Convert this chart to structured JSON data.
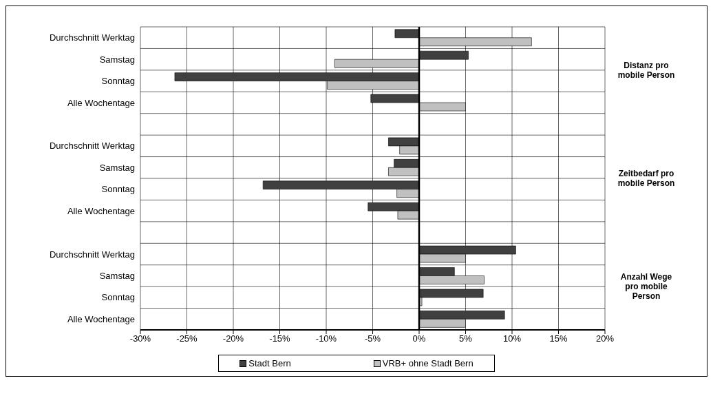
{
  "chart_data": {
    "type": "bar",
    "orientation": "horizontal",
    "categories": [
      "Durchschnitt Werktag",
      "Samstag",
      "Sonntag",
      "Alle Wochentage",
      null,
      "Durchschnitt Werktag",
      "Samstag",
      "Sonntag",
      "Alle Wochentage",
      null,
      "Durchschnitt Werktag",
      "Samstag",
      "Sonntag",
      "Alle Wochentage"
    ],
    "series": [
      {
        "name": "Stadt Bern",
        "color": "#404040",
        "values": [
          -2.6,
          5.3,
          -26.3,
          -5.2,
          null,
          -3.3,
          -2.7,
          -16.8,
          -5.5,
          null,
          10.4,
          3.8,
          6.9,
          9.2
        ]
      },
      {
        "name": "VRB+ ohne Stadt Bern",
        "color": "#c0c0c0",
        "values": [
          12.1,
          -9.1,
          -9.9,
          5.0,
          null,
          -2.1,
          -3.3,
          -2.4,
          -2.3,
          null,
          5.0,
          7.0,
          0.3,
          5.0
        ]
      }
    ],
    "xlim": [
      -30,
      20
    ],
    "xticks": [
      {
        "value": -30,
        "label": "-30%"
      },
      {
        "value": -25,
        "label": "-25%"
      },
      {
        "value": -20,
        "label": "-20%"
      },
      {
        "value": -15,
        "label": "-15%"
      },
      {
        "value": -10,
        "label": "-10%"
      },
      {
        "value": -5,
        "label": "-5%"
      },
      {
        "value": 0,
        "label": "0%"
      },
      {
        "value": 5,
        "label": "5%"
      },
      {
        "value": 10,
        "label": "10%"
      },
      {
        "value": 15,
        "label": "15%"
      },
      {
        "value": 20,
        "label": "20%"
      }
    ],
    "ref_lines": [
      {
        "axis": "x",
        "value": 0,
        "color": "#000000"
      }
    ],
    "annotations": [
      "Distanz pro mobile Person",
      "Zeitbedarf pro mobile Person",
      "Anzahl Wege pro mobile Person"
    ],
    "grid": true,
    "legend": "bottom"
  }
}
